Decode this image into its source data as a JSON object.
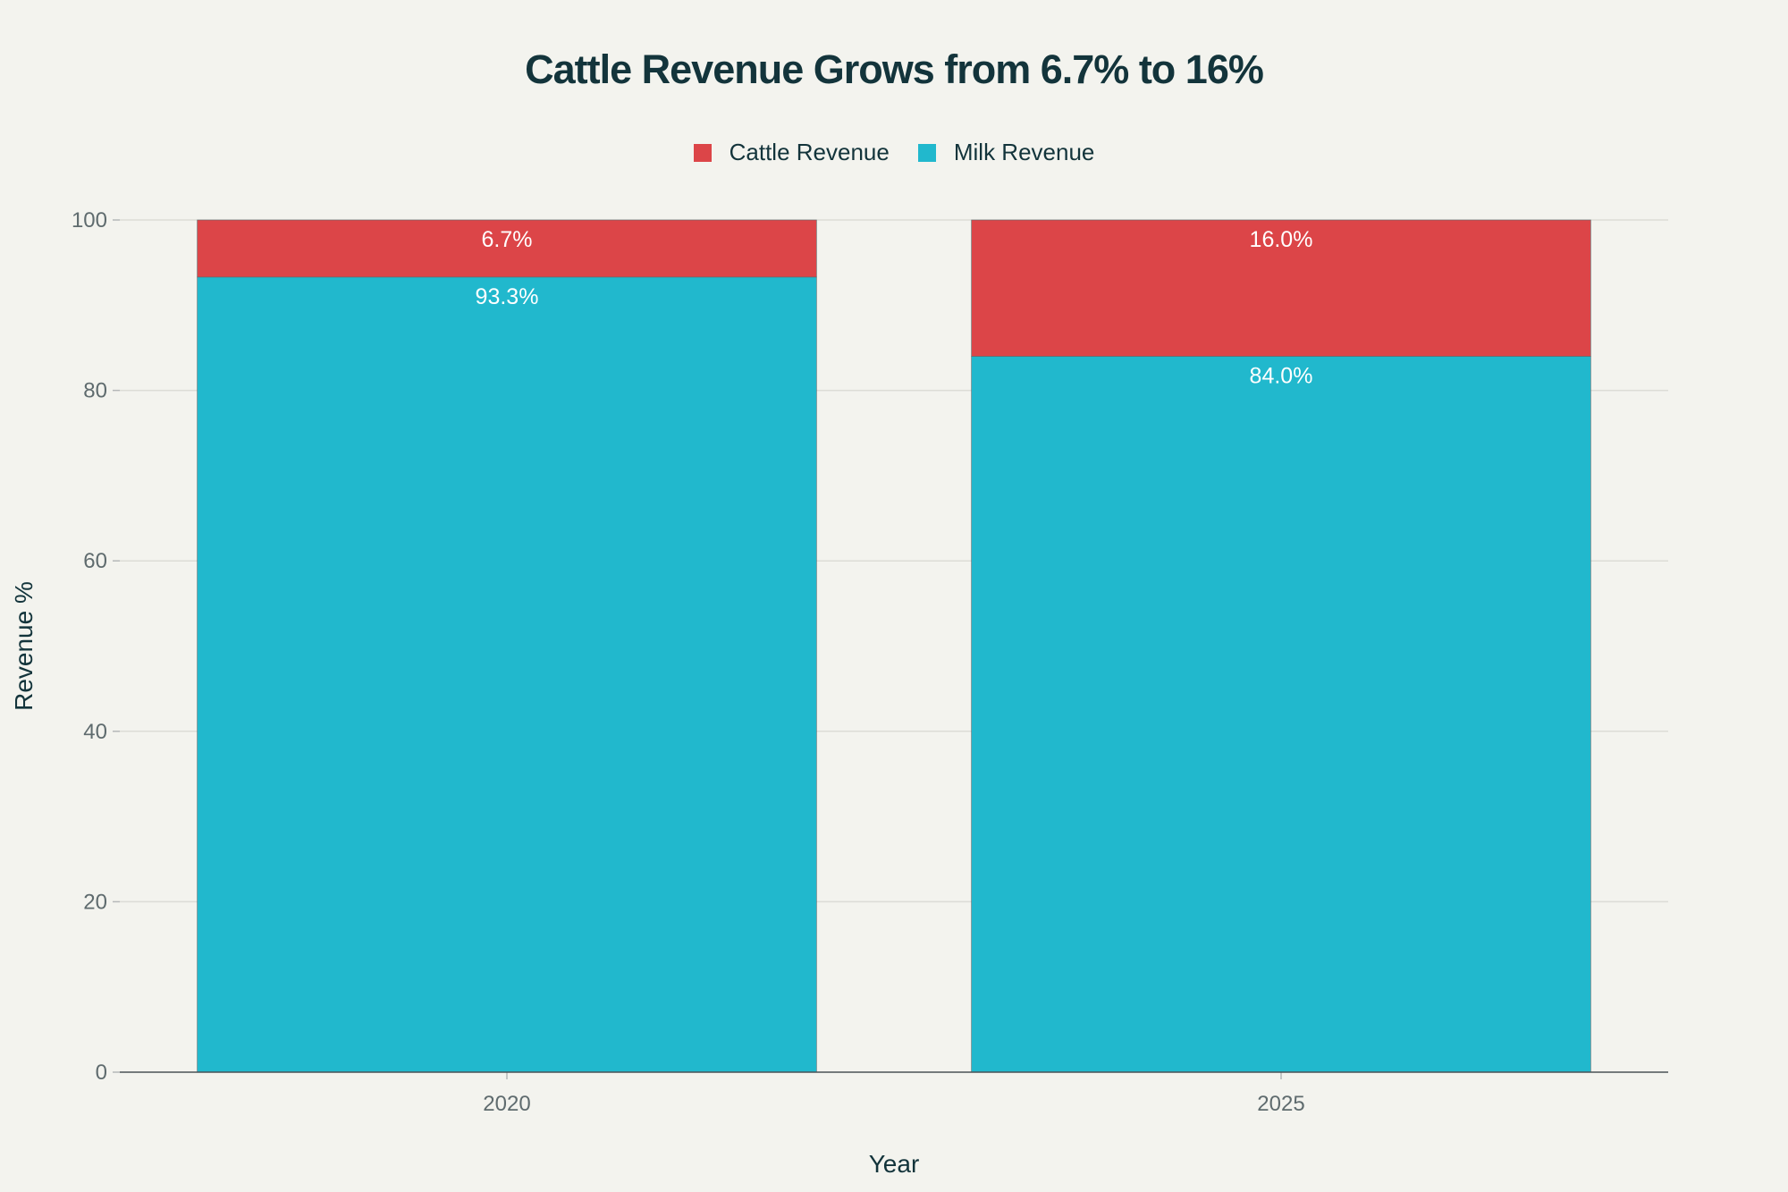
{
  "chart_data": {
    "type": "bar",
    "stacked": true,
    "title": "Cattle Revenue Grows from 6.7% to 16%",
    "xlabel": "Year",
    "ylabel": "Revenue %",
    "categories": [
      "2020",
      "2025"
    ],
    "series": [
      {
        "name": "Milk Revenue",
        "values": [
          93.3,
          84.0
        ],
        "labels": [
          "93.3%",
          "84.0%"
        ],
        "color": "#21b8cd"
      },
      {
        "name": "Cattle Revenue",
        "values": [
          6.7,
          16.0
        ],
        "labels": [
          "6.7%",
          "16.0%"
        ],
        "color": "#dc4548"
      }
    ],
    "legend_order": [
      "Cattle Revenue",
      "Milk Revenue"
    ],
    "ylim": [
      0,
      100
    ],
    "yticks": [
      0,
      20,
      40,
      60,
      80,
      100
    ],
    "grid": true,
    "legend_position": "top-center"
  }
}
